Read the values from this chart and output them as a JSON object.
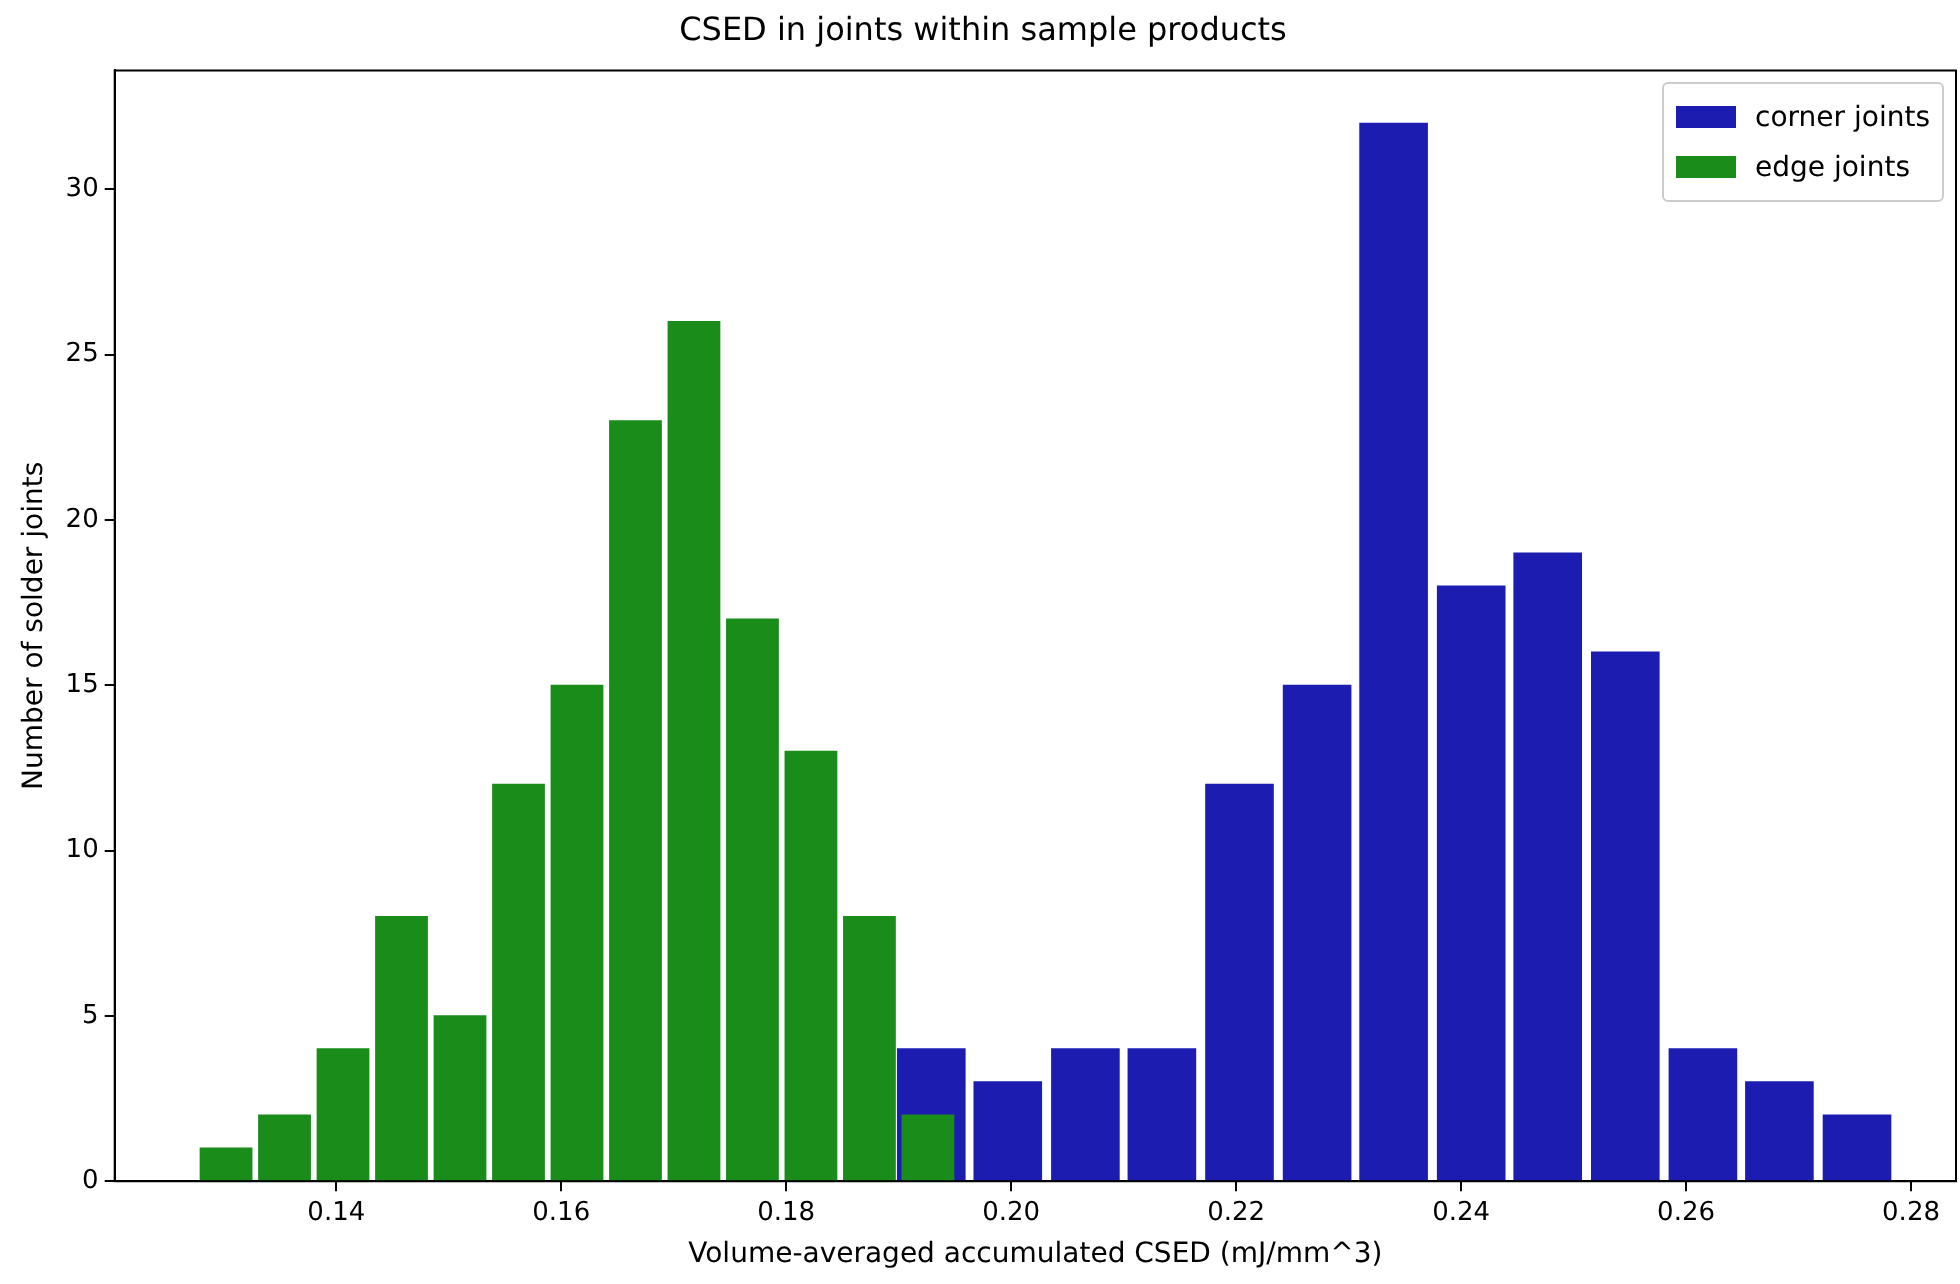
{
  "chart_data": {
    "type": "bar",
    "title": "CSED in joints within sample products",
    "xlabel": "Volume-averaged accumulated CSED (mJ/mm^3)",
    "ylabel": "Number of solder joints",
    "series": [
      {
        "name": "corner joints",
        "color": "#1c1cb0",
        "x": [
          0.1929,
          0.1997,
          0.2066,
          0.2134,
          0.2203,
          0.2272,
          0.234,
          0.2409,
          0.2477,
          0.2546,
          0.2615,
          0.2683,
          0.2752
        ],
        "values": [
          4,
          3,
          4,
          4,
          12,
          15,
          32,
          18,
          19,
          16,
          4,
          3,
          2
        ]
      },
      {
        "name": "edge joints",
        "color": "#1a8c1a",
        "x": [
          0.1302,
          0.1354,
          0.1406,
          0.1458,
          0.151,
          0.1562,
          0.1614,
          0.1666,
          0.1718,
          0.177,
          0.1822,
          0.1874,
          0.1926
        ],
        "values": [
          1,
          2,
          4,
          8,
          5,
          12,
          15,
          23,
          26,
          17,
          13,
          8,
          2
        ]
      }
    ],
    "xlim": [
      0.1203,
      0.284
    ],
    "xticks": [
      {
        "value": 0.14,
        "label": "0.14"
      },
      {
        "value": 0.16,
        "label": "0.16"
      },
      {
        "value": 0.18,
        "label": "0.18"
      },
      {
        "value": 0.2,
        "label": "0.20"
      },
      {
        "value": 0.22,
        "label": "0.22"
      },
      {
        "value": 0.24,
        "label": "0.24"
      },
      {
        "value": 0.26,
        "label": "0.26"
      },
      {
        "value": 0.28,
        "label": "0.28"
      }
    ],
    "ylim": [
      0,
      33.6
    ],
    "yticks": [
      0,
      5,
      10,
      15,
      20,
      25,
      30
    ],
    "grid": false,
    "legend": "top right"
  }
}
